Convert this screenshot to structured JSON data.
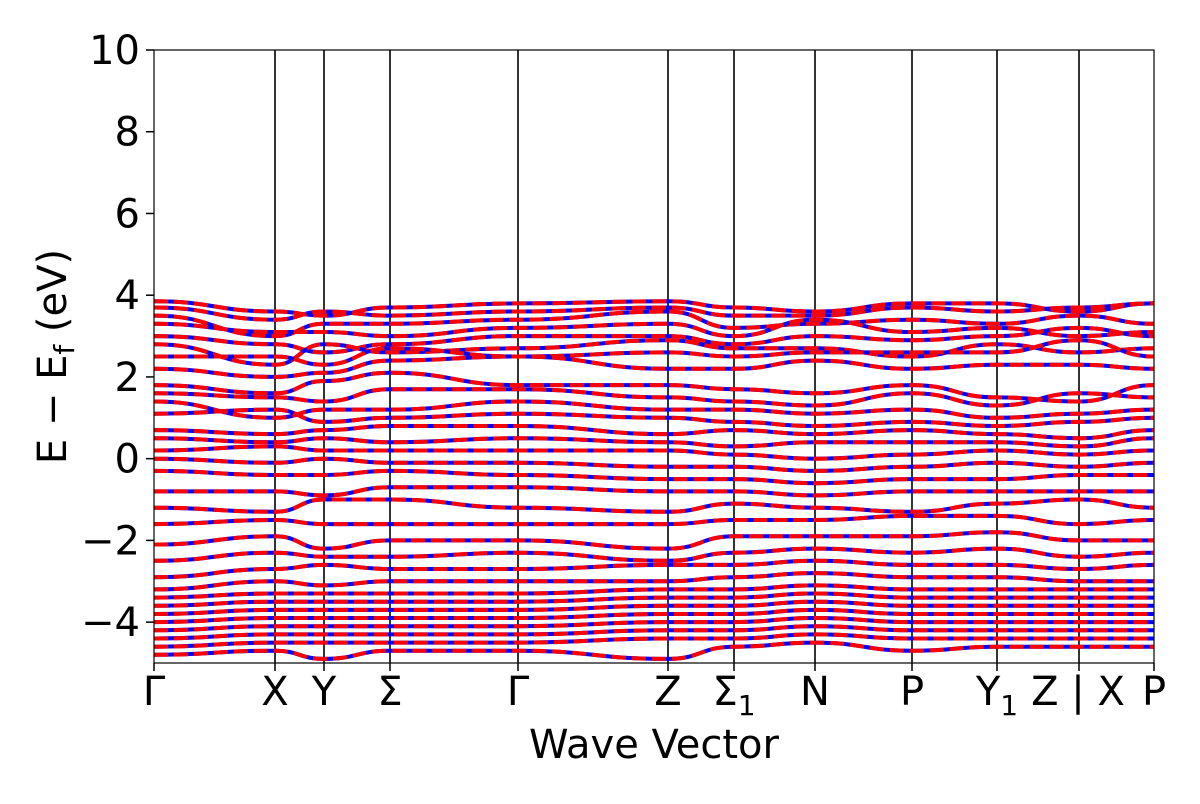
{
  "chart_data": {
    "type": "line",
    "title": "",
    "xlabel": "Wave Vector",
    "ylabel": "E − E_f (eV)",
    "ylabel_parts": {
      "main": "E − E",
      "sub": "f",
      "unit": " (eV)"
    },
    "ylim": [
      -5,
      10
    ],
    "yticks": [
      -4,
      -2,
      0,
      2,
      4,
      6,
      8,
      10
    ],
    "ytick_labels": [
      "−4",
      "−2",
      "0",
      "2",
      "4",
      "6",
      "8",
      "10"
    ],
    "xlim": [
      0,
      1
    ],
    "high_symmetry_points": [
      {
        "label": "Γ",
        "sub": "",
        "x": 0.0
      },
      {
        "label": "X",
        "sub": "",
        "x": 0.121
      },
      {
        "label": "Y",
        "sub": "",
        "x": 0.17
      },
      {
        "label": "Σ",
        "sub": "",
        "x": 0.236
      },
      {
        "label": "Γ",
        "sub": "",
        "x": 0.364
      },
      {
        "label": "Z",
        "sub": "",
        "x": 0.514
      },
      {
        "label": "Σ",
        "sub": "1",
        "x": 0.58
      },
      {
        "label": "N",
        "sub": "",
        "x": 0.661
      },
      {
        "label": "P",
        "sub": "",
        "x": 0.758
      },
      {
        "label": "Y",
        "sub": "1",
        "x": 0.843
      },
      {
        "label": "Z | X",
        "sub": "",
        "x": 0.925
      },
      {
        "label": "P",
        "sub": "",
        "x": 1.0
      }
    ],
    "series": [
      {
        "style": "solid",
        "color": "#0000ff"
      },
      {
        "style": "dashed",
        "color": "#ff0000"
      }
    ],
    "bands": [
      {
        "y": [
          3.85,
          3.6,
          3.5,
          3.7,
          3.8,
          3.85,
          3.7,
          3.6,
          3.8,
          3.8,
          3.6,
          3.8
        ]
      },
      {
        "y": [
          3.7,
          3.4,
          3.6,
          3.5,
          3.6,
          3.7,
          3.5,
          3.5,
          3.7,
          3.6,
          3.7,
          3.8
        ]
      },
      {
        "y": [
          3.5,
          3.0,
          3.3,
          3.3,
          3.4,
          3.6,
          3.2,
          3.3,
          3.4,
          3.3,
          3.5,
          3.3
        ]
      },
      {
        "y": [
          3.3,
          3.1,
          3.1,
          3.0,
          3.2,
          3.3,
          3.0,
          3.4,
          3.1,
          3.2,
          3.0,
          3.1
        ]
      },
      {
        "y": [
          3.0,
          2.8,
          2.6,
          2.8,
          3.0,
          3.0,
          2.8,
          3.0,
          2.9,
          3.0,
          3.2,
          3.0
        ]
      },
      {
        "y": [
          2.8,
          2.3,
          2.8,
          2.6,
          2.7,
          2.9,
          2.7,
          2.7,
          2.5,
          2.8,
          2.6,
          2.7
        ]
      },
      {
        "y": [
          2.5,
          2.5,
          2.3,
          2.7,
          2.5,
          2.6,
          2.5,
          2.6,
          2.6,
          2.6,
          2.9,
          2.5
        ]
      },
      {
        "y": [
          2.2,
          2.0,
          2.1,
          2.4,
          2.5,
          2.2,
          2.2,
          2.4,
          2.2,
          2.3,
          2.3,
          2.2
        ]
      },
      {
        "y": [
          1.8,
          1.6,
          1.9,
          2.1,
          1.8,
          1.8,
          1.7,
          1.6,
          1.8,
          1.5,
          1.4,
          1.8
        ]
      },
      {
        "y": [
          1.6,
          1.5,
          1.4,
          1.7,
          1.7,
          1.5,
          1.4,
          1.3,
          1.6,
          1.3,
          1.6,
          1.5
        ]
      },
      {
        "y": [
          1.4,
          1.0,
          1.2,
          1.2,
          1.4,
          1.2,
          1.2,
          1.1,
          1.2,
          1.0,
          1.1,
          1.2
        ]
      },
      {
        "y": [
          1.1,
          1.2,
          0.9,
          1.0,
          1.1,
          1.0,
          0.9,
          0.8,
          0.9,
          0.8,
          0.9,
          1.0
        ]
      },
      {
        "y": [
          0.7,
          0.6,
          0.7,
          0.8,
          0.8,
          0.6,
          0.7,
          0.6,
          0.7,
          0.6,
          0.5,
          0.7
        ]
      },
      {
        "y": [
          0.5,
          0.4,
          0.5,
          0.4,
          0.5,
          0.4,
          0.3,
          0.4,
          0.4,
          0.4,
          0.3,
          0.5
        ]
      },
      {
        "y": [
          0.2,
          0.3,
          0.2,
          0.2,
          0.2,
          0.2,
          0.1,
          0.0,
          0.1,
          0.2,
          0.1,
          0.2
        ]
      },
      {
        "y": [
          0.0,
          -0.1,
          0.0,
          -0.1,
          -0.1,
          -0.2,
          -0.2,
          -0.3,
          -0.2,
          -0.1,
          -0.2,
          -0.1
        ]
      },
      {
        "y": [
          -0.3,
          -0.4,
          -0.4,
          -0.3,
          -0.4,
          -0.5,
          -0.5,
          -0.6,
          -0.5,
          -0.5,
          -0.4,
          -0.4
        ]
      },
      {
        "y": [
          -0.8,
          -0.8,
          -0.9,
          -0.7,
          -0.7,
          -0.8,
          -0.8,
          -0.9,
          -0.8,
          -0.8,
          -0.8,
          -0.8
        ]
      },
      {
        "y": [
          -1.2,
          -1.3,
          -1.0,
          -1.0,
          -1.2,
          -1.3,
          -1.1,
          -1.2,
          -1.3,
          -1.1,
          -1.0,
          -1.2
        ]
      },
      {
        "y": [
          -1.6,
          -1.5,
          -1.6,
          -1.6,
          -1.6,
          -1.6,
          -1.5,
          -1.5,
          -1.4,
          -1.4,
          -1.6,
          -1.5
        ]
      },
      {
        "y": [
          -2.1,
          -1.9,
          -2.2,
          -2.0,
          -2.0,
          -2.2,
          -1.9,
          -1.9,
          -1.9,
          -1.8,
          -2.0,
          -2.0
        ]
      },
      {
        "y": [
          -2.5,
          -2.3,
          -2.4,
          -2.4,
          -2.3,
          -2.5,
          -2.3,
          -2.2,
          -2.3,
          -2.2,
          -2.4,
          -2.3
        ]
      },
      {
        "y": [
          -2.9,
          -2.7,
          -2.6,
          -2.7,
          -2.7,
          -2.6,
          -2.6,
          -2.5,
          -2.6,
          -2.6,
          -2.7,
          -2.6
        ]
      },
      {
        "y": [
          -3.2,
          -3.0,
          -3.1,
          -3.0,
          -3.0,
          -3.0,
          -2.9,
          -2.8,
          -2.9,
          -2.9,
          -3.0,
          -3.0
        ]
      },
      {
        "y": [
          -3.4,
          -3.3,
          -3.3,
          -3.3,
          -3.3,
          -3.2,
          -3.2,
          -3.1,
          -3.2,
          -3.2,
          -3.2,
          -3.2
        ]
      },
      {
        "y": [
          -3.6,
          -3.5,
          -3.5,
          -3.5,
          -3.5,
          -3.4,
          -3.4,
          -3.3,
          -3.4,
          -3.4,
          -3.4,
          -3.4
        ]
      },
      {
        "y": [
          -3.8,
          -3.7,
          -3.7,
          -3.7,
          -3.7,
          -3.6,
          -3.6,
          -3.5,
          -3.6,
          -3.6,
          -3.6,
          -3.6
        ]
      },
      {
        "y": [
          -4.0,
          -3.9,
          -3.9,
          -3.9,
          -3.9,
          -3.8,
          -3.8,
          -3.7,
          -3.8,
          -3.8,
          -3.8,
          -3.8
        ]
      },
      {
        "y": [
          -4.2,
          -4.1,
          -4.1,
          -4.1,
          -4.1,
          -4.0,
          -4.0,
          -3.9,
          -4.0,
          -4.0,
          -4.0,
          -4.0
        ]
      },
      {
        "y": [
          -4.4,
          -4.3,
          -4.3,
          -4.3,
          -4.3,
          -4.2,
          -4.2,
          -4.1,
          -4.2,
          -4.2,
          -4.2,
          -4.2
        ]
      },
      {
        "y": [
          -4.6,
          -4.5,
          -4.5,
          -4.5,
          -4.5,
          -4.4,
          -4.4,
          -4.3,
          -4.4,
          -4.4,
          -4.4,
          -4.4
        ]
      },
      {
        "y": [
          -4.8,
          -4.7,
          -4.9,
          -4.7,
          -4.7,
          -4.9,
          -4.6,
          -4.5,
          -4.7,
          -4.6,
          -4.6,
          -4.6
        ]
      }
    ]
  }
}
